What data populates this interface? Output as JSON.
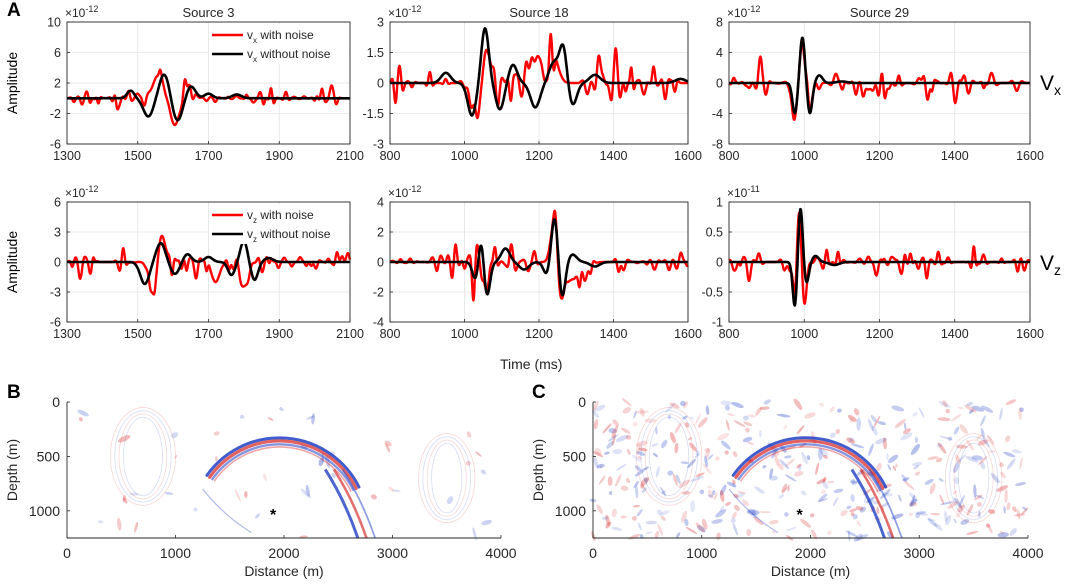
{
  "panels": {
    "a_letter": "A",
    "b_letter": "B",
    "c_letter": "C",
    "row_label_x": "V",
    "row_label_x_sub": "x",
    "row_label_z": "V",
    "row_label_z_sub": "z",
    "time_xlabel": "Time (ms)",
    "amplitude_ylabel": "Amplitude"
  },
  "colors": {
    "with_noise": "#ff0000",
    "without_noise": "#000000",
    "positive": "#d62020",
    "negative": "#1f3fc4"
  },
  "chart_data": [
    {
      "id": "vx_s3",
      "type": "line",
      "title": "Source 3",
      "xlabel": "",
      "ylabel": "Amplitude",
      "exponent": "×10^{-12}",
      "xlim": [
        1300,
        2100
      ],
      "xticks": [
        1300,
        1500,
        1700,
        1900,
        2100
      ],
      "ylim": [
        -6,
        10
      ],
      "yticks": [
        -6,
        -2,
        2,
        6,
        10
      ],
      "grid": true,
      "legend": {
        "position": "top-right",
        "entries": [
          "v_x with noise",
          "v_x without noise"
        ]
      },
      "series": [
        {
          "name": "v_x with noise",
          "color": "#ff0000",
          "kind": "noisy",
          "amp": 0.85,
          "wavelets": [
            [
              1560,
              3.2,
              22,
              0
            ],
            [
              1605,
              -3.6,
              20,
              0
            ],
            [
              1640,
              2.0,
              18,
              0
            ]
          ],
          "noise": 1.1,
          "seed": 3
        },
        {
          "name": "v_x without noise",
          "color": "#000000",
          "kind": "clean",
          "wavelets": [
            [
              1480,
              1.0,
              14,
              0
            ],
            [
              1530,
              -2.4,
              20,
              0
            ],
            [
              1575,
              3.2,
              20,
              0
            ],
            [
              1612,
              -3.0,
              20,
              0
            ],
            [
              1650,
              1.6,
              18,
              0
            ],
            [
              1700,
              0.6,
              16,
              0
            ],
            [
              1780,
              0.5,
              18,
              0
            ]
          ],
          "baseline": 0.0
        }
      ]
    },
    {
      "id": "vx_s18",
      "type": "line",
      "title": "Source 18",
      "xlabel": "",
      "ylabel": "",
      "exponent": "×10^{-12}",
      "xlim": [
        800,
        1600
      ],
      "xticks": [
        800,
        1000,
        1200,
        1400,
        1600
      ],
      "ylim": [
        -3,
        3
      ],
      "yticks": [
        -3,
        -1.5,
        0,
        1.5,
        3
      ],
      "grid": true,
      "legend": null,
      "series": [
        {
          "name": "v_x with noise",
          "color": "#ff0000",
          "kind": "noisy",
          "amp": 1.0,
          "wavelets": [
            [
              1040,
              -2.3,
              18,
              0
            ],
            [
              1055,
              2.6,
              16,
              0
            ],
            [
              1195,
              1.3,
              18,
              0
            ],
            [
              1240,
              1.2,
              18,
              0
            ]
          ],
          "noise": 0.95,
          "seed": 18
        },
        {
          "name": "v_x without noise",
          "color": "#000000",
          "kind": "clean",
          "wavelets": [
            [
              950,
              0.5,
              18,
              0
            ],
            [
              1020,
              -1.6,
              16,
              0
            ],
            [
              1055,
              2.7,
              14,
              0
            ],
            [
              1095,
              -1.3,
              16,
              0
            ],
            [
              1130,
              0.9,
              16,
              0
            ],
            [
              1190,
              -1.2,
              18,
              0
            ],
            [
              1240,
              1.0,
              18,
              0
            ],
            [
              1265,
              1.8,
              14,
              0
            ],
            [
              1290,
              -1.1,
              16,
              0
            ],
            [
              1350,
              0.4,
              20,
              0
            ],
            [
              1580,
              0.2,
              20,
              0
            ]
          ],
          "baseline": 0.0
        }
      ]
    },
    {
      "id": "vx_s29",
      "type": "line",
      "title": "Source 29",
      "xlabel": "",
      "ylabel": "",
      "exponent": "×10^{-12}",
      "xlim": [
        800,
        1600
      ],
      "xticks": [
        800,
        1000,
        1200,
        1400,
        1600
      ],
      "ylim": [
        -8,
        8
      ],
      "yticks": [
        -8,
        -4,
        0,
        4,
        8
      ],
      "grid": true,
      "legend": null,
      "series": [
        {
          "name": "v_x with noise",
          "color": "#ff0000",
          "kind": "noisy",
          "amp": 1.0,
          "wavelets": [
            [
              995,
              5.8,
              10,
              0
            ],
            [
              975,
              -4.4,
              10,
              0
            ],
            [
              1012,
              -4.0,
              10,
              0
            ],
            [
              1190,
              -1.3,
              40,
              0
            ]
          ],
          "noise": 1.3,
          "seed": 29
        },
        {
          "name": "v_x without noise",
          "color": "#000000",
          "kind": "clean",
          "wavelets": [
            [
              975,
              -4.0,
              9,
              0
            ],
            [
              995,
              6.0,
              9,
              0
            ],
            [
              1015,
              -4.0,
              9,
              0
            ],
            [
              1040,
              1.0,
              12,
              0
            ],
            [
              1100,
              0.2,
              20,
              0
            ]
          ],
          "baseline": 0.0
        }
      ]
    },
    {
      "id": "vz_s3",
      "type": "line",
      "title": "",
      "xlabel": "",
      "ylabel": "Amplitude",
      "exponent": "×10^{-12}",
      "xlim": [
        1300,
        2100
      ],
      "xticks": [
        1300,
        1500,
        1700,
        1900,
        2100
      ],
      "ylim": [
        -6,
        6
      ],
      "yticks": [
        -6,
        -3,
        0,
        3,
        6
      ],
      "grid": true,
      "legend": {
        "position": "top-right",
        "entries": [
          "v_z with noise",
          "v_z without noise"
        ]
      },
      "series": [
        {
          "name": "v_z with noise",
          "color": "#ff0000",
          "kind": "noisy",
          "amp": 1.0,
          "wavelets": [
            [
              1545,
              -3.8,
              16,
              0
            ],
            [
              1565,
              3.2,
              16,
              0
            ],
            [
              1720,
              -2.0,
              16,
              0
            ],
            [
              1800,
              -2.6,
              16,
              0
            ]
          ],
          "noise": 1.15,
          "seed": 33
        },
        {
          "name": "v_z without noise",
          "color": "#000000",
          "kind": "clean",
          "wavelets": [
            [
              1520,
              -2.2,
              18,
              0
            ],
            [
              1565,
              1.9,
              18,
              0
            ],
            [
              1605,
              -1.2,
              18,
              0
            ],
            [
              1640,
              0.8,
              16,
              0
            ],
            [
              1700,
              0.5,
              16,
              0
            ],
            [
              1765,
              -1.3,
              14,
              0
            ],
            [
              1800,
              2.1,
              14,
              0
            ],
            [
              1830,
              -1.8,
              14,
              0
            ],
            [
              1870,
              0.4,
              18,
              0
            ]
          ],
          "baseline": 0.0
        }
      ]
    },
    {
      "id": "vz_s18",
      "type": "line",
      "title": "",
      "xlabel": "",
      "ylabel": "",
      "exponent": "×10^{-12}",
      "xlim": [
        800,
        1600
      ],
      "xticks": [
        800,
        1000,
        1200,
        1400,
        1600
      ],
      "ylim": [
        -4,
        4
      ],
      "yticks": [
        -4,
        -2,
        0,
        2,
        4
      ],
      "grid": true,
      "legend": null,
      "series": [
        {
          "name": "v_z with noise",
          "color": "#ff0000",
          "kind": "noisy",
          "amp": 1.0,
          "wavelets": [
            [
              1050,
              -2.1,
              14,
              0
            ],
            [
              1045,
              1.6,
              10,
              0
            ],
            [
              1240,
              2.9,
              12,
              0
            ],
            [
              1260,
              -2.3,
              12,
              0
            ],
            [
              1300,
              -1.3,
              30,
              0
            ]
          ],
          "noise": 1.05,
          "seed": 181
        },
        {
          "name": "v_z without noise",
          "color": "#000000",
          "kind": "clean",
          "wavelets": [
            [
              1030,
              -1.2,
              12,
              0
            ],
            [
              1045,
              1.8,
              10,
              0
            ],
            [
              1060,
              -2.3,
              12,
              0
            ],
            [
              1110,
              0.9,
              16,
              0
            ],
            [
              1160,
              -0.5,
              18,
              0
            ],
            [
              1220,
              -0.8,
              12,
              0
            ],
            [
              1242,
              3.0,
              12,
              0
            ],
            [
              1262,
              -2.4,
              12,
              0
            ],
            [
              1290,
              0.5,
              16,
              0
            ],
            [
              1350,
              -0.3,
              18,
              0
            ]
          ],
          "baseline": 0.0
        }
      ]
    },
    {
      "id": "vz_s29",
      "type": "line",
      "title": "",
      "xlabel": "",
      "ylabel": "",
      "exponent": "×10^{-11}",
      "xlim": [
        800,
        1600
      ],
      "xticks": [
        800,
        1000,
        1200,
        1400,
        1600
      ],
      "ylim": [
        -1,
        1
      ],
      "yticks": [
        -1,
        -0.5,
        0,
        0.5,
        1
      ],
      "grid": true,
      "legend": null,
      "series": [
        {
          "name": "v_z with noise",
          "color": "#ff0000",
          "kind": "noisy",
          "amp": 1.0,
          "wavelets": [
            [
              985,
              0.9,
              8,
              0
            ],
            [
              975,
              -0.7,
              8,
              0
            ],
            [
              1000,
              -0.6,
              9,
              0
            ]
          ],
          "noise": 0.18,
          "seed": 291
        },
        {
          "name": "v_z without noise",
          "color": "#000000",
          "kind": "clean",
          "wavelets": [
            [
              975,
              -0.75,
              8,
              0
            ],
            [
              990,
              0.92,
              8,
              0
            ],
            [
              1006,
              -0.35,
              9,
              0
            ],
            [
              1030,
              0.1,
              12,
              0
            ],
            [
              1080,
              -0.05,
              18,
              0
            ]
          ],
          "baseline": 0.0
        }
      ]
    },
    {
      "id": "img_b",
      "type": "heatmap",
      "title": "",
      "xlabel": "Distance (m)",
      "ylabel": "Depth (m)",
      "xlim": [
        0,
        4000
      ],
      "xticks": [
        0,
        1000,
        2000,
        3000,
        4000
      ],
      "ylim": [
        1250,
        0
      ],
      "yticks": [
        0,
        500,
        1000
      ],
      "source_marker": {
        "symbol": "*",
        "x": 1900,
        "y": 1030
      },
      "noise_level": 0.05,
      "seed": 7
    },
    {
      "id": "img_c",
      "type": "heatmap",
      "title": "",
      "xlabel": "Distance (m)",
      "ylabel": "Depth (m)",
      "xlim": [
        0,
        4000
      ],
      "xticks": [
        0,
        1000,
        2000,
        3000,
        4000
      ],
      "ylim": [
        1250,
        0
      ],
      "yticks": [
        0,
        500,
        1000
      ],
      "source_marker": {
        "symbol": "*",
        "x": 1900,
        "y": 1030
      },
      "noise_level": 0.45,
      "seed": 11
    }
  ]
}
